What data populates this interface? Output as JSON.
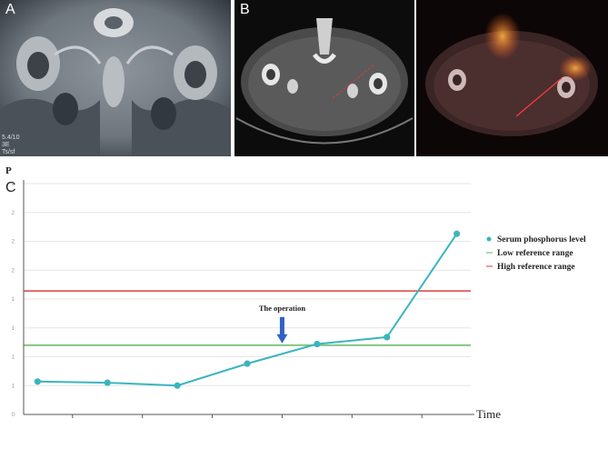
{
  "figure": {
    "panel_a_label": "A",
    "panel_b_label": "B",
    "panel_c_label": "C",
    "panel_a_caption_lines": [
      "5.4/10",
      "3E",
      "Ts/sf"
    ]
  },
  "chart_data": {
    "type": "line",
    "ylabel": "P",
    "xlabel": "Time",
    "ytick_labels": [
      "0",
      "1",
      "1",
      "1",
      "1",
      "2",
      "2",
      "2",
      "2"
    ],
    "x": [
      1,
      2,
      3,
      4,
      5,
      6,
      7
    ],
    "series": [
      {
        "name": "Serum phosphorus level",
        "color": "#3ab5c0",
        "values": [
          0.57,
          0.55,
          0.5,
          0.88,
          1.22,
          1.34,
          3.13
        ]
      }
    ],
    "reference_lines": [
      {
        "name": "Low reference range",
        "value": 1.2,
        "color": "#7cc47c"
      },
      {
        "name": "High reference range",
        "value": 2.14,
        "color": "#e05b5b"
      }
    ],
    "annotation": {
      "text": "The operation",
      "x": 4.5,
      "y": 1.2,
      "color": "#2f62c8"
    },
    "xlim": [
      0.8,
      7.2
    ],
    "ylim": [
      0,
      4.0
    ],
    "legend_position": "right"
  }
}
